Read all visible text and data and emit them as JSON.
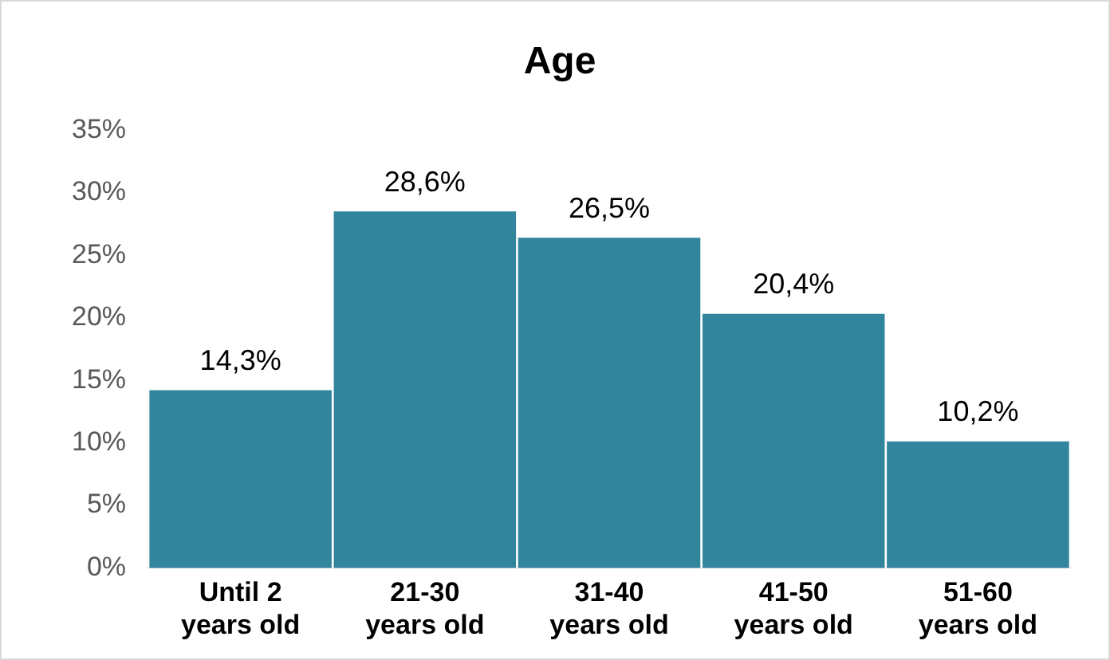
{
  "chart_data": {
    "type": "bar",
    "title": "Age",
    "categories": [
      "Until 2\nyears old",
      "21-30\nyears old",
      "31-40\nyears old",
      "41-50\nyears old",
      "51-60\nyears old"
    ],
    "values": [
      14.3,
      28.6,
      26.5,
      20.4,
      10.2
    ],
    "value_labels": [
      "14,3%",
      "28,6%",
      "26,5%",
      "20,4%",
      "10,2%"
    ],
    "color": "#31859c",
    "ylim": [
      0,
      35
    ],
    "yticks": [
      {
        "value": 0,
        "label": "0%"
      },
      {
        "value": 5,
        "label": "5%"
      },
      {
        "value": 10,
        "label": "10%"
      },
      {
        "value": 15,
        "label": "15%"
      },
      {
        "value": 20,
        "label": "20%"
      },
      {
        "value": 25,
        "label": "25%"
      },
      {
        "value": 30,
        "label": "30%"
      },
      {
        "value": 35,
        "label": "35%"
      }
    ],
    "grid": false,
    "legend": false
  }
}
